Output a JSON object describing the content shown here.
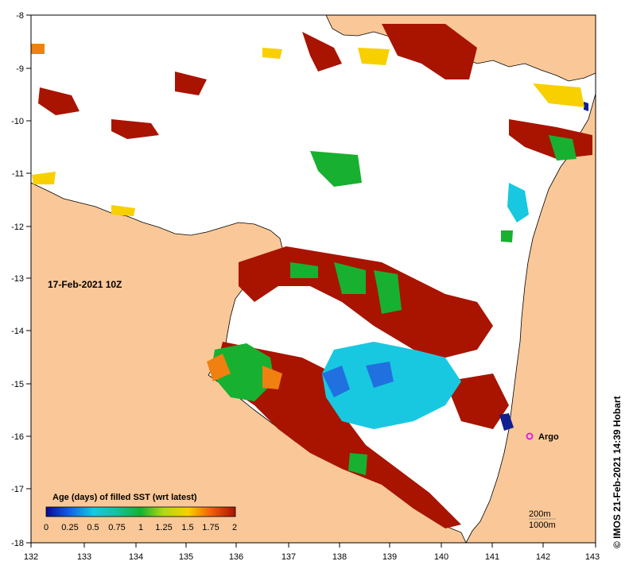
{
  "map": {
    "date_label": "17-Feb-2021 10Z",
    "credit": "© IMOS 21-Feb-2021 14:39 Hobart",
    "lon_ticks": [
      "132",
      "133",
      "134",
      "135",
      "136",
      "137",
      "138",
      "139",
      "140",
      "141",
      "142",
      "143"
    ],
    "lat_ticks": [
      "-8",
      "-9",
      "-10",
      "-11",
      "-12",
      "-13",
      "-14",
      "-15",
      "-16",
      "-17",
      "-18"
    ],
    "legend": {
      "title": "Age (days) of filled SST (wrt latest)",
      "ticks": [
        "0",
        "0.25",
        "0.5",
        "0.75",
        "1",
        "1.25",
        "1.5",
        "1.75",
        "2"
      ]
    },
    "contours": {
      "shallow": "200m",
      "deep": "1000m"
    },
    "argo": {
      "label": "Argo",
      "color": "#e020e0"
    },
    "colors": {
      "land": "#fac898",
      "ocean": "#ffffff",
      "old_fill": "#a81400"
    }
  }
}
